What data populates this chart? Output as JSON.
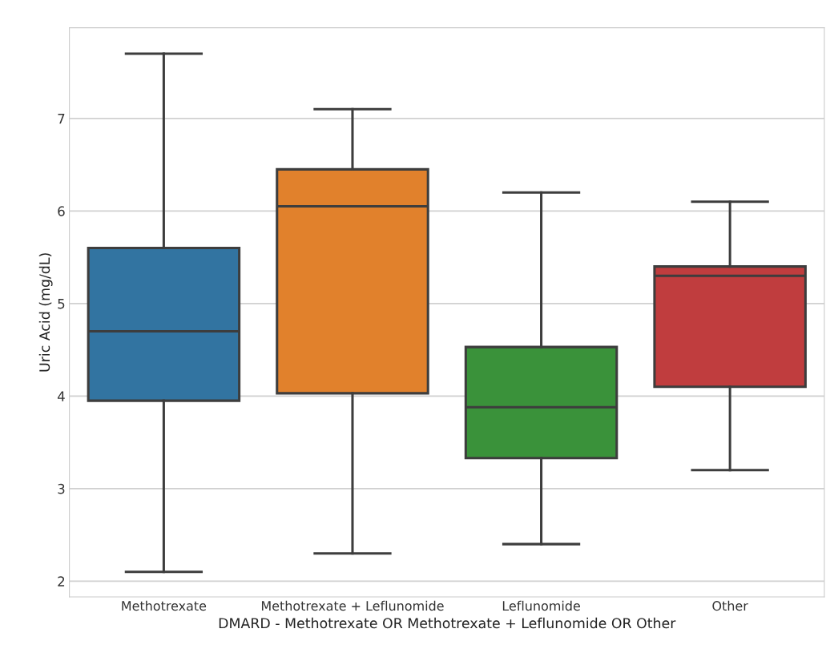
{
  "chart_data": {
    "type": "box",
    "xlabel": "DMARD - Methotrexate OR Methotrexate + Leflunomide OR Other",
    "ylabel": "Uric Acid (mg/dL)",
    "categories": [
      "Methotrexate",
      "Methotrexate + Leflunomide",
      "Leflunomide",
      "Other"
    ],
    "colors": [
      "#3274a1",
      "#e1812c",
      "#3a923a",
      "#c03d3e"
    ],
    "boxes": [
      {
        "low": 2.1,
        "q1": 3.95,
        "median": 4.7,
        "q3": 5.6,
        "high": 7.7
      },
      {
        "low": 2.3,
        "q1": 4.03,
        "median": 6.05,
        "q3": 6.45,
        "high": 7.1
      },
      {
        "low": 2.4,
        "q1": 3.33,
        "median": 3.88,
        "q3": 4.53,
        "high": 6.2
      },
      {
        "low": 3.2,
        "q1": 4.1,
        "median": 5.3,
        "q3": 5.4,
        "high": 6.1
      }
    ],
    "ylim": [
      1.83,
      7.98
    ],
    "yticks": [
      2,
      3,
      4,
      5,
      6,
      7
    ],
    "grid": "y"
  }
}
